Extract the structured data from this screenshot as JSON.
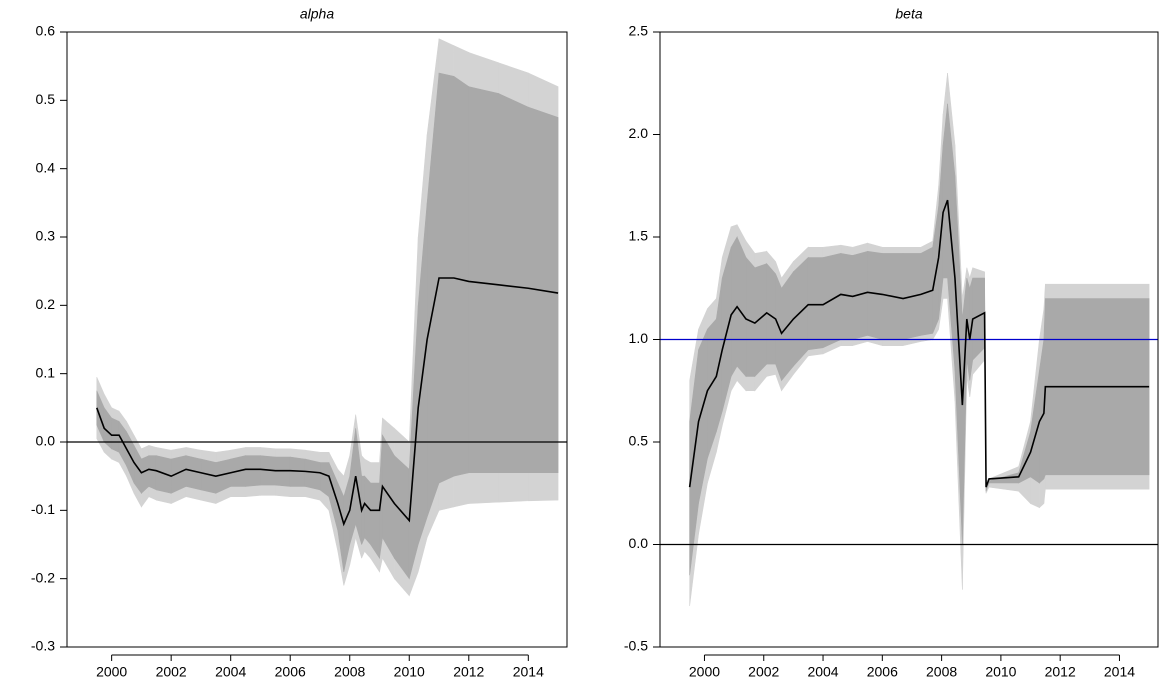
{
  "chart_data": [
    {
      "type": "band-line",
      "title": "alpha",
      "x": [
        1999.5,
        1999.75,
        2000,
        2000.25,
        2000.5,
        2000.75,
        2001,
        2001.25,
        2001.5,
        2002,
        2002.5,
        2003,
        2003.5,
        2004,
        2004.5,
        2005,
        2005.5,
        2006,
        2006.5,
        2007,
        2007.3,
        2007.6,
        2007.8,
        2008,
        2008.2,
        2008.4,
        2008.5,
        2008.7,
        2009,
        2009.1,
        2009.5,
        2010,
        2010.3,
        2010.6,
        2011,
        2011.5,
        2012,
        2013,
        2014,
        2015
      ],
      "line": {
        "color": "#000000",
        "values": [
          0.05,
          0.02,
          0.01,
          0.01,
          -0.01,
          -0.03,
          -0.045,
          -0.04,
          -0.042,
          -0.05,
          -0.04,
          -0.045,
          -0.05,
          -0.045,
          -0.04,
          -0.04,
          -0.042,
          -0.042,
          -0.043,
          -0.045,
          -0.05,
          -0.09,
          -0.12,
          -0.1,
          -0.05,
          -0.1,
          -0.09,
          -0.1,
          -0.1,
          -0.065,
          -0.09,
          -0.115,
          0.05,
          0.15,
          0.24,
          0.24,
          0.235,
          0.23,
          0.225,
          0.218
        ]
      },
      "bands": [
        {
          "color": "#d3d3d3",
          "upper": [
            0.095,
            0.07,
            0.05,
            0.045,
            0.03,
            0.01,
            -0.01,
            -0.005,
            -0.008,
            -0.012,
            -0.008,
            -0.012,
            -0.015,
            -0.012,
            -0.008,
            -0.008,
            -0.01,
            -0.01,
            -0.012,
            -0.015,
            -0.015,
            -0.04,
            -0.05,
            -0.02,
            0.04,
            -0.02,
            -0.025,
            -0.03,
            -0.03,
            0.035,
            0.02,
            0,
            0.3,
            0.45,
            0.59,
            0.58,
            0.57,
            0.555,
            0.54,
            0.52
          ],
          "lower": [
            0.005,
            -0.015,
            -0.025,
            -0.03,
            -0.05,
            -0.075,
            -0.095,
            -0.08,
            -0.085,
            -0.09,
            -0.08,
            -0.085,
            -0.09,
            -0.08,
            -0.08,
            -0.078,
            -0.078,
            -0.08,
            -0.08,
            -0.085,
            -0.1,
            -0.16,
            -0.21,
            -0.18,
            -0.14,
            -0.17,
            -0.16,
            -0.17,
            -0.19,
            -0.17,
            -0.2,
            -0.225,
            -0.19,
            -0.14,
            -0.1,
            -0.095,
            -0.09,
            -0.088,
            -0.086,
            -0.085
          ]
        },
        {
          "color": "#a9a9a9",
          "upper": [
            0.075,
            0.05,
            0.035,
            0.03,
            0.015,
            -0.005,
            -0.025,
            -0.02,
            -0.02,
            -0.025,
            -0.02,
            -0.025,
            -0.03,
            -0.025,
            -0.02,
            -0.02,
            -0.022,
            -0.022,
            -0.025,
            -0.03,
            -0.03,
            -0.06,
            -0.08,
            -0.05,
            0.02,
            -0.05,
            -0.05,
            -0.06,
            -0.06,
            0.01,
            -0.02,
            -0.04,
            0.2,
            0.35,
            0.54,
            0.535,
            0.52,
            0.51,
            0.49,
            0.475
          ],
          "lower": [
            0.025,
            0,
            -0.01,
            -0.015,
            -0.035,
            -0.06,
            -0.075,
            -0.065,
            -0.07,
            -0.075,
            -0.065,
            -0.07,
            -0.075,
            -0.065,
            -0.065,
            -0.063,
            -0.063,
            -0.065,
            -0.065,
            -0.07,
            -0.08,
            -0.13,
            -0.19,
            -0.15,
            -0.12,
            -0.15,
            -0.14,
            -0.15,
            -0.17,
            -0.14,
            -0.17,
            -0.2,
            -0.15,
            -0.11,
            -0.06,
            -0.05,
            -0.045,
            -0.045,
            -0.045,
            -0.045
          ]
        }
      ],
      "hlines": [
        {
          "value": 0,
          "color": "#000000"
        }
      ],
      "xlim": [
        1998.5,
        2015.3
      ],
      "xticks": [
        2000,
        2002,
        2004,
        2006,
        2008,
        2010,
        2012,
        2014
      ],
      "ylim": [
        -0.3,
        0.6
      ],
      "yticks": [
        -0.3,
        -0.2,
        -0.1,
        {
          "value": 0,
          "label": "0.0"
        },
        0.1,
        0.2,
        0.3,
        0.4,
        0.5,
        0.6
      ]
    },
    {
      "type": "band-line",
      "title": "beta",
      "x": [
        1999.5,
        1999.8,
        2000.1,
        2000.4,
        2000.6,
        2000.9,
        2001.1,
        2001.4,
        2001.7,
        2002.1,
        2002.4,
        2002.6,
        2003.0,
        2003.5,
        2004.0,
        2004.6,
        2005.0,
        2005.5,
        2006.0,
        2006.7,
        2007.3,
        2007.7,
        2007.9,
        2008.05,
        2008.2,
        2008.45,
        2008.7,
        2008.85,
        2008.95,
        2009.05,
        2009.45,
        2009.5,
        2009.6,
        2010.6,
        2011.0,
        2011.3,
        2011.45,
        2011.5,
        2015.0
      ],
      "line": {
        "color": "#000000",
        "values": [
          0.28,
          0.6,
          0.75,
          0.82,
          0.95,
          1.12,
          1.16,
          1.1,
          1.08,
          1.13,
          1.1,
          1.03,
          1.1,
          1.17,
          1.17,
          1.22,
          1.21,
          1.23,
          1.22,
          1.2,
          1.22,
          1.24,
          1.4,
          1.62,
          1.68,
          1.3,
          0.68,
          1.1,
          1.0,
          1.1,
          1.13,
          0.28,
          0.32,
          0.33,
          0.45,
          0.6,
          0.64,
          0.77,
          0.77
        ]
      },
      "bands": [
        {
          "color": "#d3d3d3",
          "upper": [
            0.8,
            1.05,
            1.15,
            1.2,
            1.4,
            1.55,
            1.56,
            1.48,
            1.42,
            1.43,
            1.38,
            1.3,
            1.38,
            1.45,
            1.45,
            1.46,
            1.45,
            1.47,
            1.45,
            1.45,
            1.45,
            1.48,
            1.75,
            2.1,
            2.3,
            1.95,
            1.2,
            1.35,
            1.3,
            1.35,
            1.33,
            0.31,
            0.32,
            0.38,
            0.6,
            1.0,
            1.15,
            1.27,
            1.27
          ],
          "lower": [
            -0.3,
            0.05,
            0.3,
            0.45,
            0.58,
            0.75,
            0.8,
            0.75,
            0.75,
            0.82,
            0.83,
            0.75,
            0.83,
            0.92,
            0.93,
            0.97,
            0.97,
            0.99,
            0.97,
            0.97,
            0.99,
            1.0,
            1.05,
            1.2,
            1.2,
            0.7,
            -0.22,
            0.82,
            0.72,
            0.83,
            0.9,
            0.25,
            0.28,
            0.26,
            0.2,
            0.18,
            0.2,
            0.27,
            0.27
          ]
        },
        {
          "color": "#a9a9a9",
          "upper": [
            0.6,
            0.95,
            1.05,
            1.1,
            1.3,
            1.45,
            1.5,
            1.4,
            1.35,
            1.37,
            1.32,
            1.25,
            1.33,
            1.4,
            1.4,
            1.42,
            1.41,
            1.43,
            1.42,
            1.42,
            1.42,
            1.45,
            1.65,
            1.95,
            2.15,
            1.8,
            1.1,
            1.3,
            1.25,
            1.3,
            1.3,
            0.3,
            0.31,
            0.35,
            0.55,
            0.85,
            1.0,
            1.2,
            1.2
          ],
          "lower": [
            -0.15,
            0.2,
            0.42,
            0.55,
            0.65,
            0.82,
            0.87,
            0.82,
            0.82,
            0.88,
            0.88,
            0.8,
            0.87,
            0.95,
            0.96,
            1.0,
            1.0,
            1.02,
            1.0,
            1.0,
            1.02,
            1.03,
            1.1,
            1.3,
            1.3,
            0.85,
            0,
            0.9,
            0.8,
            0.9,
            0.96,
            0.26,
            0.3,
            0.3,
            0.33,
            0.3,
            0.32,
            0.34,
            0.34
          ]
        }
      ],
      "hlines": [
        {
          "value": 0,
          "color": "#000000"
        },
        {
          "value": 1,
          "color": "#0000cc"
        }
      ],
      "xlim": [
        1998.5,
        2015.3
      ],
      "xticks": [
        2000,
        2002,
        2004,
        2006,
        2008,
        2010,
        2012,
        2014
      ],
      "ylim": [
        -0.5,
        2.5
      ],
      "yticks": [
        -0.5,
        {
          "value": 0,
          "label": "0.0"
        },
        0.5,
        {
          "value": 1,
          "label": "1.0"
        },
        1.5,
        {
          "value": 2,
          "label": "2.0"
        },
        2.5
      ]
    }
  ]
}
